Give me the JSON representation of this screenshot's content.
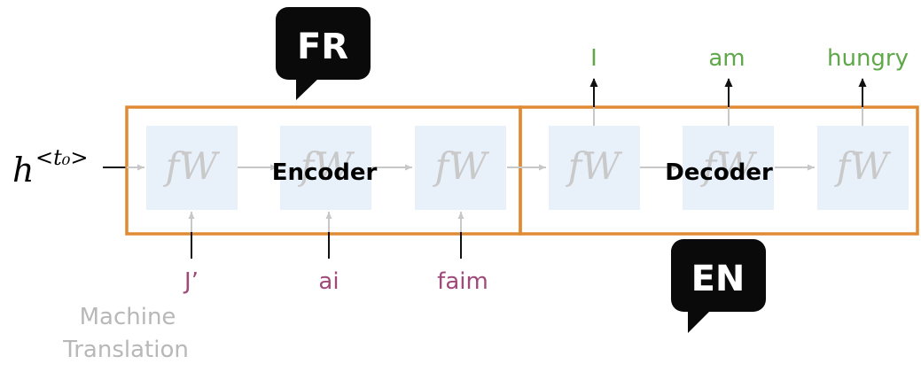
{
  "colors": {
    "box_border": "#E08A33",
    "cell_fill": "#E8F0FA",
    "cell_text": "#C9C9C9",
    "french_word": "#A04A7A",
    "english_word": "#5FA84A",
    "caption": "#B8B8B8",
    "arrow_light": "#C8C8C8",
    "arrow_dark": "#111111",
    "bubble": "#0A0A0A"
  },
  "initial_state": {
    "base": "h",
    "superscript": "<t₀>"
  },
  "encoder": {
    "label": "Encoder",
    "language": "FR",
    "cells": [
      {
        "function": "fW",
        "input": "J’"
      },
      {
        "function": "fW",
        "input": "ai"
      },
      {
        "function": "fW",
        "input": "faim"
      }
    ]
  },
  "decoder": {
    "label": "Decoder",
    "language": "EN",
    "cells": [
      {
        "function": "fW",
        "output": "I"
      },
      {
        "function": "fW",
        "output": "am"
      },
      {
        "function": "fW",
        "output": "hungry"
      }
    ]
  },
  "caption": {
    "line1": "Machine",
    "line2": "Translation"
  }
}
